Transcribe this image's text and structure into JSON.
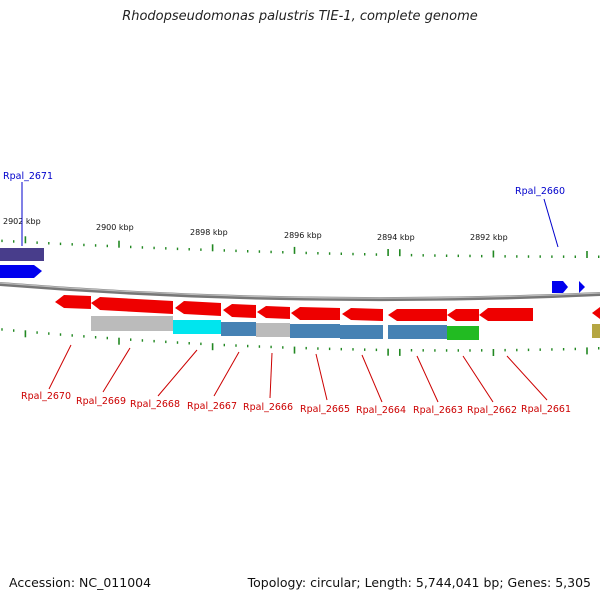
{
  "title": "Rhodopseudomonas palustris TIE-1, complete genome",
  "footer": {
    "accession": "Accession: NC_011004",
    "stats": "Topology: circular; Length: 5,744,041 bp; Genes: 5,305"
  },
  "colors": {
    "reverse_gene": "#ee0000",
    "forward_gene": "#0000ee",
    "reverse_label": "#cc0000",
    "forward_label": "#0000cc",
    "tick": "#228822",
    "backbone": "#777777"
  },
  "kbp_labels": [
    "2902 kbp",
    "2900 kbp",
    "2898 kbp",
    "2896 kbp",
    "2894 kbp",
    "2892 kbp"
  ],
  "forward_genes": [
    {
      "label": "Rpal_2671"
    },
    {
      "label": "Rpal_2660"
    }
  ],
  "reverse_genes": [
    {
      "label": "Rpal_2670"
    },
    {
      "label": "Rpal_2669"
    },
    {
      "label": "Rpal_2668"
    },
    {
      "label": "Rpal_2667"
    },
    {
      "label": "Rpal_2666"
    },
    {
      "label": "Rpal_2665"
    },
    {
      "label": "Rpal_2664"
    },
    {
      "label": "Rpal_2663"
    },
    {
      "label": "Rpal_2662"
    },
    {
      "label": "Rpal_2661"
    }
  ],
  "function_colors": [
    "#bbbbbb",
    "#00e5ee",
    "#4682b4",
    "#bbbbbb",
    "#4682b4",
    "#4682b4",
    "#4682b4",
    "#22bb22"
  ]
}
